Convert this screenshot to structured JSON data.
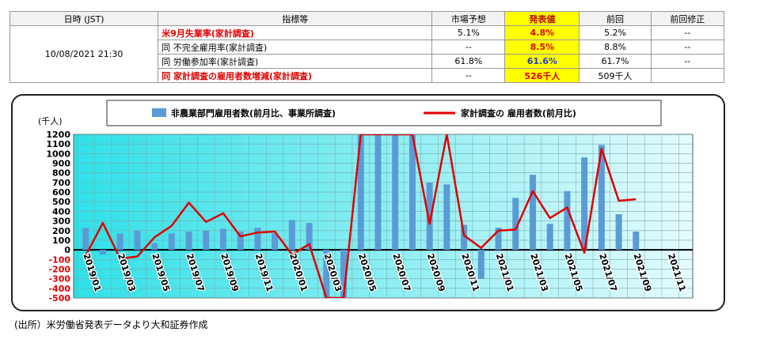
{
  "table": {
    "header": [
      "日時 (JST)",
      "指標等",
      "市場予想",
      "発表値",
      "前回",
      "前回修正"
    ],
    "date": "10/08/2021 21:30",
    "rows": [
      [
        "米9月失業率(家計調査)",
        "5.1%",
        "4.8%",
        "5.2%",
        "--"
      ],
      [
        "同 不完全雇用率(家計調査)",
        "--",
        "8.5%",
        "8.8%",
        "--"
      ],
      [
        "同 労働参加率(家計調査)",
        "61.8%",
        "61.6%",
        "61.7%",
        "--"
      ],
      [
        "同 家計調査の雇用者数増減(家計調査)",
        "--",
        "526千人",
        "509千人"
      ]
    ]
  },
  "chart_data": {
    "type": "bar_line",
    "unit_label": "(千人)",
    "categories": [
      "2019/01",
      null,
      "2019/03",
      null,
      "2019/05",
      null,
      "2019/07",
      null,
      "2019/09",
      null,
      "2019/11",
      null,
      "2020/01",
      null,
      "2020/03",
      null,
      "2020/05",
      null,
      "2020/07",
      null,
      "2020/09",
      null,
      "2020/11",
      null,
      "2021/01",
      null,
      "2021/03",
      null,
      "2021/05",
      null,
      "2021/07",
      null,
      "2021/09",
      null,
      "2021/11"
    ],
    "series": [
      {
        "name": "非農業部門雇用者数(前月比、事業所調査)",
        "type": "bar",
        "color": "#5b9bd5",
        "values": [
          230,
          -50,
          170,
          200,
          70,
          170,
          190,
          200,
          220,
          190,
          230,
          170,
          310,
          280,
          -500,
          -500,
          1200,
          1200,
          1200,
          1200,
          700,
          680,
          260,
          -300,
          230,
          540,
          780,
          270,
          610,
          960,
          1090,
          370,
          190,
          null,
          null
        ]
      },
      {
        "name": "家計調査の 雇用者数(前月比)",
        "type": "line",
        "color": "#e00000",
        "values": [
          -60,
          280,
          -90,
          -70,
          130,
          250,
          490,
          290,
          380,
          140,
          180,
          190,
          -50,
          60,
          -500,
          -500,
          1200,
          1200,
          1200,
          1200,
          270,
          1200,
          150,
          20,
          200,
          210,
          610,
          330,
          440,
          -30,
          1050,
          510,
          526,
          null,
          null
        ]
      }
    ],
    "ylim": [
      -500,
      1200
    ],
    "yticks": [
      -500,
      -400,
      -300,
      -200,
      -100,
      0,
      100,
      200,
      300,
      400,
      500,
      600,
      700,
      800,
      900,
      1000,
      1100,
      1200
    ],
    "grid": true
  },
  "footer": "(出所）米労働省発表データより大和証券作成"
}
